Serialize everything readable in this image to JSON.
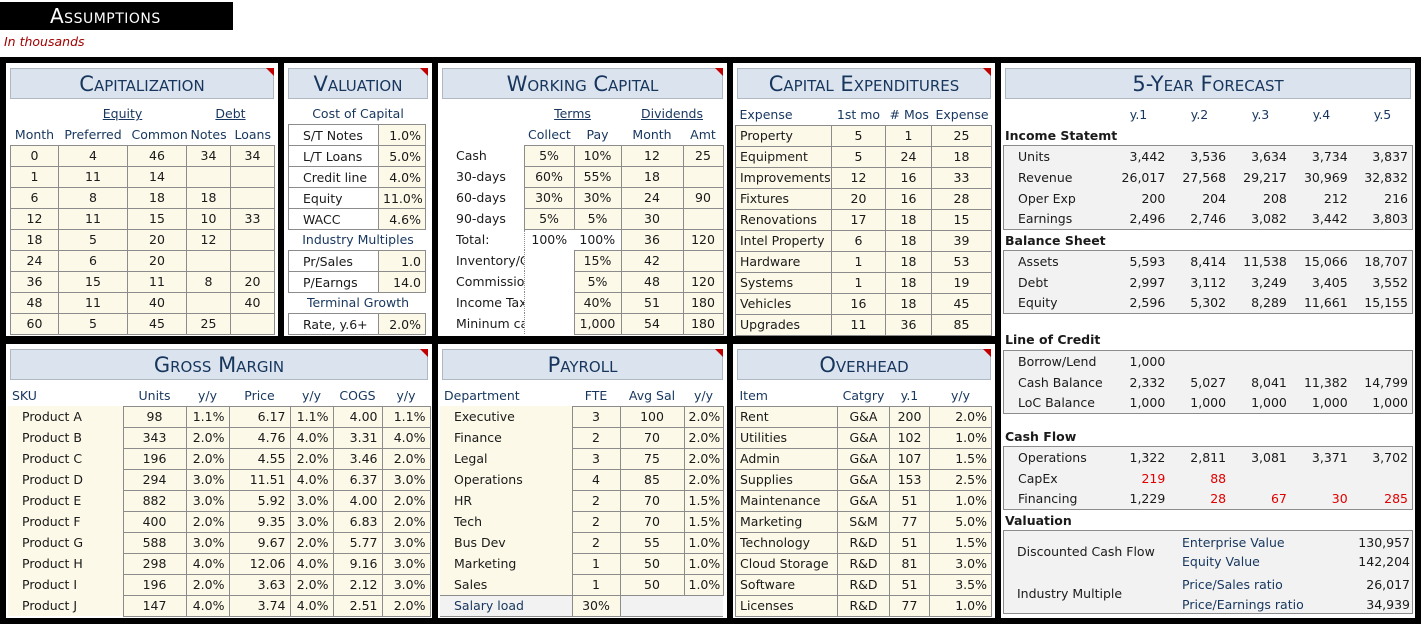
{
  "header": {
    "title": "Assumptions",
    "subtitle": "In thousands"
  },
  "capitalization": {
    "title": "Capitalization",
    "group_equity": "Equity",
    "group_debt": "Debt",
    "cols": [
      "Month",
      "Preferred",
      "Common",
      "Notes",
      "Loans"
    ],
    "rows": [
      [
        "0",
        "4",
        "46",
        "34",
        "34"
      ],
      [
        "1",
        "11",
        "14",
        "",
        ""
      ],
      [
        "6",
        "8",
        "18",
        "18",
        ""
      ],
      [
        "12",
        "11",
        "15",
        "10",
        "33"
      ],
      [
        "18",
        "5",
        "20",
        "12",
        ""
      ],
      [
        "24",
        "6",
        "20",
        "",
        ""
      ],
      [
        "36",
        "15",
        "11",
        "8",
        "20"
      ],
      [
        "48",
        "11",
        "40",
        "",
        "40"
      ],
      [
        "60",
        "5",
        "45",
        "25",
        ""
      ]
    ]
  },
  "valuation": {
    "title": "Valuation",
    "cost_header": "Cost of Capital",
    "cost": [
      [
        "S/T Notes",
        "1.0%"
      ],
      [
        "L/T Loans",
        "5.0%"
      ],
      [
        "Credit line",
        "4.0%"
      ],
      [
        "Equity",
        "11.0%"
      ],
      [
        "WACC",
        "4.6%"
      ]
    ],
    "mult_header": "Industry Multiples",
    "mult": [
      [
        "Pr/Sales",
        "1.0"
      ],
      [
        "P/Earngs",
        "14.0"
      ]
    ],
    "tg_header": "Terminal Growth",
    "tg": [
      [
        "Rate, y.6+",
        "2.0%"
      ]
    ]
  },
  "working_capital": {
    "title": "Working Capital",
    "group_terms": "Terms",
    "group_div": "Dividends",
    "cols": [
      "Collect",
      "Pay",
      "Month",
      "Amt"
    ],
    "rows": [
      [
        "Cash",
        "5%",
        "10%",
        "12",
        "25"
      ],
      [
        "30-days",
        "60%",
        "55%",
        "18",
        ""
      ],
      [
        "60-days",
        "30%",
        "30%",
        "24",
        "90"
      ],
      [
        "90-days",
        "5%",
        "5%",
        "30",
        ""
      ],
      [
        "Total:",
        "100%",
        "100%",
        "36",
        "120"
      ],
      [
        "Inventory/COGS",
        "",
        "15%",
        "42",
        ""
      ],
      [
        "Commissions",
        "",
        "5%",
        "48",
        "120"
      ],
      [
        "Income Taxes",
        "",
        "40%",
        "51",
        "180"
      ],
      [
        "Mininum cash",
        "",
        "1,000",
        "54",
        "180"
      ]
    ]
  },
  "capex": {
    "title": "Capital Expenditures",
    "cols": [
      "Expense",
      "1st mo",
      "# Mos",
      "Expense"
    ],
    "rows": [
      [
        "Property",
        "5",
        "1",
        "25"
      ],
      [
        "Equipment",
        "5",
        "24",
        "18"
      ],
      [
        "Improvements",
        "12",
        "16",
        "33"
      ],
      [
        "Fixtures",
        "20",
        "16",
        "28"
      ],
      [
        "Renovations",
        "17",
        "18",
        "15"
      ],
      [
        "Intel Property",
        "6",
        "18",
        "39"
      ],
      [
        "Hardware",
        "1",
        "18",
        "53"
      ],
      [
        "Systems",
        "1",
        "18",
        "19"
      ],
      [
        "Vehicles",
        "16",
        "18",
        "45"
      ],
      [
        "Upgrades",
        "11",
        "36",
        "85"
      ]
    ]
  },
  "forecast": {
    "title": "5-Year Forecast",
    "years": [
      "y.1",
      "y.2",
      "y.3",
      "y.4",
      "y.5"
    ],
    "income_title": "Income Statemt",
    "income": [
      [
        "Units",
        "3,442",
        "3,536",
        "3,634",
        "3,734",
        "3,837"
      ],
      [
        "Revenue",
        "26,017",
        "27,568",
        "29,217",
        "30,969",
        "32,832"
      ],
      [
        "Oper Exp",
        "200",
        "204",
        "208",
        "212",
        "216"
      ],
      [
        "Earnings",
        "2,496",
        "2,746",
        "3,082",
        "3,442",
        "3,803"
      ]
    ],
    "balance_title": "Balance Sheet",
    "balance": [
      [
        "Assets",
        "5,593",
        "8,414",
        "11,538",
        "15,066",
        "18,707"
      ],
      [
        "Debt",
        "2,997",
        "3,112",
        "3,249",
        "3,405",
        "3,552"
      ],
      [
        "Equity",
        "2,596",
        "5,302",
        "8,289",
        "11,661",
        "15,155"
      ]
    ],
    "loc_title": "Line of Credit",
    "loc": [
      [
        "Borrow/Lend",
        "1,000",
        "",
        "",
        "",
        ""
      ],
      [
        "Cash Balance",
        "2,332",
        "5,027",
        "8,041",
        "11,382",
        "14,799"
      ],
      [
        "LoC Balance",
        "1,000",
        "1,000",
        "1,000",
        "1,000",
        "1,000"
      ]
    ],
    "cf_title": "Cash Flow",
    "cf": [
      [
        "Operations",
        "1,322",
        "2,811",
        "3,081",
        "3,371",
        "3,702"
      ],
      [
        "CapEx",
        "219",
        "88",
        "",
        "",
        ""
      ],
      [
        "Financing",
        "1,229",
        "28",
        "67",
        "30",
        "285"
      ]
    ],
    "val_title": "Valuation",
    "dcf_label": "Discounted Cash Flow",
    "dcf": [
      [
        "Enterprise Value",
        "130,957"
      ],
      [
        "Equity Value",
        "142,204"
      ]
    ],
    "im_label": "Industry Multiple",
    "im": [
      [
        "Price/Sales ratio",
        "26,017"
      ],
      [
        "Price/Earnings ratio",
        "34,939"
      ]
    ]
  },
  "gross_margin": {
    "title": "Gross Margin",
    "cols": [
      "SKU",
      "Units",
      "y/y",
      "Price",
      "y/y",
      "COGS",
      "y/y"
    ],
    "rows": [
      [
        "Product A",
        "98",
        "1.1%",
        "6.17",
        "1.1%",
        "4.00",
        "1.1%"
      ],
      [
        "Product B",
        "343",
        "2.0%",
        "4.76",
        "4.0%",
        "3.31",
        "4.0%"
      ],
      [
        "Product C",
        "196",
        "2.0%",
        "4.55",
        "2.0%",
        "3.46",
        "2.0%"
      ],
      [
        "Product D",
        "294",
        "3.0%",
        "11.51",
        "4.0%",
        "6.37",
        "3.0%"
      ],
      [
        "Product E",
        "882",
        "3.0%",
        "5.92",
        "3.0%",
        "4.00",
        "2.0%"
      ],
      [
        "Product F",
        "400",
        "2.0%",
        "9.35",
        "3.0%",
        "6.83",
        "2.0%"
      ],
      [
        "Product G",
        "588",
        "3.0%",
        "9.67",
        "2.0%",
        "5.77",
        "3.0%"
      ],
      [
        "Product H",
        "298",
        "4.0%",
        "12.06",
        "4.0%",
        "9.16",
        "3.0%"
      ],
      [
        "Product I",
        "196",
        "2.0%",
        "3.63",
        "2.0%",
        "2.12",
        "3.0%"
      ],
      [
        "Product J",
        "147",
        "4.0%",
        "3.74",
        "4.0%",
        "2.51",
        "2.0%"
      ]
    ]
  },
  "payroll": {
    "title": "Payroll",
    "cols": [
      "Department",
      "FTE",
      "Avg Sal",
      "y/y"
    ],
    "rows": [
      [
        "Executive",
        "3",
        "100",
        "2.0%"
      ],
      [
        "Finance",
        "2",
        "70",
        "2.0%"
      ],
      [
        "Legal",
        "3",
        "75",
        "2.0%"
      ],
      [
        "Operations",
        "4",
        "85",
        "2.0%"
      ],
      [
        "HR",
        "2",
        "70",
        "1.5%"
      ],
      [
        "Tech",
        "2",
        "70",
        "1.5%"
      ],
      [
        "Bus Dev",
        "2",
        "55",
        "1.0%"
      ],
      [
        "Marketing",
        "1",
        "50",
        "1.0%"
      ],
      [
        "Sales",
        "1",
        "50",
        "1.0%"
      ]
    ],
    "load_label": "Salary load",
    "load_value": "30%"
  },
  "overhead": {
    "title": "Overhead",
    "cols": [
      "Item",
      "Catgry",
      "y.1",
      "y/y"
    ],
    "rows": [
      [
        "Rent",
        "G&A",
        "200",
        "2.0%"
      ],
      [
        "Utilities",
        "G&A",
        "102",
        "1.0%"
      ],
      [
        "Admin",
        "G&A",
        "107",
        "1.5%"
      ],
      [
        "Supplies",
        "G&A",
        "153",
        "2.5%"
      ],
      [
        "Maintenance",
        "G&A",
        "51",
        "1.0%"
      ],
      [
        "Marketing",
        "S&M",
        "77",
        "5.0%"
      ],
      [
        "Technology",
        "R&D",
        "51",
        "1.5%"
      ],
      [
        "Cloud Storage",
        "R&D",
        "81",
        "3.0%"
      ],
      [
        "Software",
        "R&D",
        "51",
        "3.5%"
      ],
      [
        "Licenses",
        "R&D",
        "77",
        "1.0%"
      ]
    ]
  }
}
